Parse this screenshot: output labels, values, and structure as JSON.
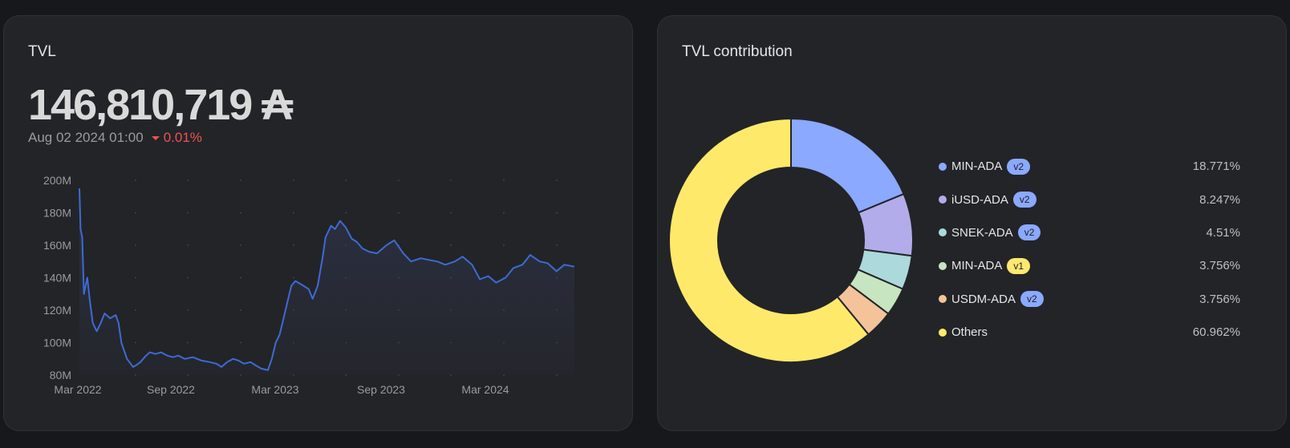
{
  "tvl_card": {
    "title": "TVL",
    "value": "146,810,719 ₳",
    "date": "Aug 02 2024 01:00",
    "change": "0.01%",
    "change_color": "#ef5350",
    "line_color": "#3d6bd4"
  },
  "contribution_card": {
    "title": "TVL contribution",
    "legend": [
      {
        "name": "MIN-ADA",
        "badge": "v2",
        "badge_color": "#8aa9ff",
        "pct": "18.771%",
        "color": "#8aa9ff"
      },
      {
        "name": "iUSD-ADA",
        "badge": "v2",
        "badge_color": "#8aa9ff",
        "pct": "8.247%",
        "color": "#b2acea"
      },
      {
        "name": "SNEK-ADA",
        "badge": "v2",
        "badge_color": "#8aa9ff",
        "pct": "4.51%",
        "color": "#acd9db"
      },
      {
        "name": "MIN-ADA",
        "badge": "v1",
        "badge_color": "#ffe870",
        "pct": "3.756%",
        "color": "#c7e5c0"
      },
      {
        "name": "USDM-ADA",
        "badge": "v2",
        "badge_color": "#8aa9ff",
        "pct": "3.756%",
        "color": "#f4c39a"
      },
      {
        "name": "Others",
        "badge": "",
        "badge_color": "",
        "pct": "60.962%",
        "color": "#ffe96a"
      }
    ]
  },
  "chart_data": [
    {
      "type": "line",
      "title": "TVL",
      "ylabel": "",
      "xlabel": "",
      "ylim": [
        80000000,
        200000000
      ],
      "yticks": [
        "200M",
        "180M",
        "160M",
        "140M",
        "120M",
        "100M",
        "80M"
      ],
      "xticks": [
        "Mar 2022",
        "Sep 2022",
        "Mar 2023",
        "Sep 2023",
        "Mar 2024"
      ],
      "xrange": [
        "2022-03-01",
        "2024-08-02"
      ],
      "grid": "dotted",
      "series": [
        {
          "x": [
            "2022-03-01",
            "2022-03-03",
            "2022-03-06",
            "2022-03-09",
            "2022-03-12",
            "2022-03-15",
            "2022-03-20",
            "2022-03-25",
            "2022-04-01",
            "2022-04-08",
            "2022-04-15",
            "2022-04-25",
            "2022-05-05",
            "2022-05-10",
            "2022-05-15",
            "2022-05-25",
            "2022-06-05",
            "2022-06-10",
            "2022-06-18",
            "2022-06-28",
            "2022-07-05",
            "2022-07-15",
            "2022-07-25",
            "2022-08-05",
            "2022-08-15",
            "2022-08-25",
            "2022-09-05",
            "2022-09-20",
            "2022-10-05",
            "2022-10-20",
            "2022-11-01",
            "2022-11-10",
            "2022-11-20",
            "2022-12-01",
            "2022-12-10",
            "2022-12-20",
            "2023-01-01",
            "2023-01-10",
            "2023-01-20",
            "2023-02-01",
            "2023-02-08",
            "2023-02-15",
            "2023-02-22",
            "2023-03-01",
            "2023-03-10",
            "2023-03-15",
            "2023-03-22",
            "2023-04-01",
            "2023-04-15",
            "2023-04-22",
            "2023-05-01",
            "2023-05-10",
            "2023-05-15",
            "2023-05-25",
            "2023-06-01",
            "2023-06-10",
            "2023-06-20",
            "2023-07-01",
            "2023-07-10",
            "2023-07-20",
            "2023-08-01",
            "2023-08-15",
            "2023-09-01",
            "2023-09-15",
            "2023-10-01",
            "2023-10-15",
            "2023-11-01",
            "2023-11-15",
            "2023-12-01",
            "2023-12-15",
            "2024-01-01",
            "2024-01-15",
            "2024-02-01",
            "2024-02-15",
            "2024-03-01",
            "2024-03-15",
            "2024-04-01",
            "2024-04-15",
            "2024-05-01",
            "2024-05-15",
            "2024-06-01",
            "2024-06-15",
            "2024-07-01",
            "2024-07-15",
            "2024-08-02"
          ],
          "values": [
            195000000,
            170000000,
            165000000,
            130000000,
            135000000,
            140000000,
            125000000,
            112000000,
            107000000,
            112000000,
            118000000,
            115000000,
            117000000,
            112000000,
            100000000,
            90000000,
            85000000,
            86000000,
            88000000,
            92000000,
            94000000,
            93000000,
            94000000,
            92000000,
            91000000,
            92000000,
            90000000,
            91000000,
            89000000,
            88000000,
            87000000,
            85000000,
            88000000,
            90000000,
            89000000,
            87000000,
            88000000,
            86000000,
            84000000,
            83000000,
            90000000,
            100000000,
            105000000,
            115000000,
            128000000,
            135000000,
            138000000,
            136000000,
            133000000,
            127000000,
            135000000,
            153000000,
            165000000,
            172000000,
            170000000,
            175000000,
            171000000,
            164000000,
            162000000,
            158000000,
            156000000,
            155000000,
            160000000,
            163000000,
            155000000,
            150000000,
            152000000,
            151000000,
            150000000,
            148000000,
            150000000,
            153000000,
            148000000,
            139000000,
            141000000,
            137000000,
            140000000,
            146000000,
            148000000,
            154000000,
            150000000,
            149000000,
            144000000,
            148000000,
            146810719
          ]
        }
      ]
    },
    {
      "type": "pie",
      "title": "TVL contribution",
      "categories": [
        "MIN-ADA v2",
        "iUSD-ADA v2",
        "SNEK-ADA v2",
        "MIN-ADA v1",
        "USDM-ADA v2",
        "Others"
      ],
      "values": [
        18.771,
        8.247,
        4.51,
        3.756,
        3.756,
        60.962
      ],
      "donut": true,
      "legend": "right"
    }
  ]
}
